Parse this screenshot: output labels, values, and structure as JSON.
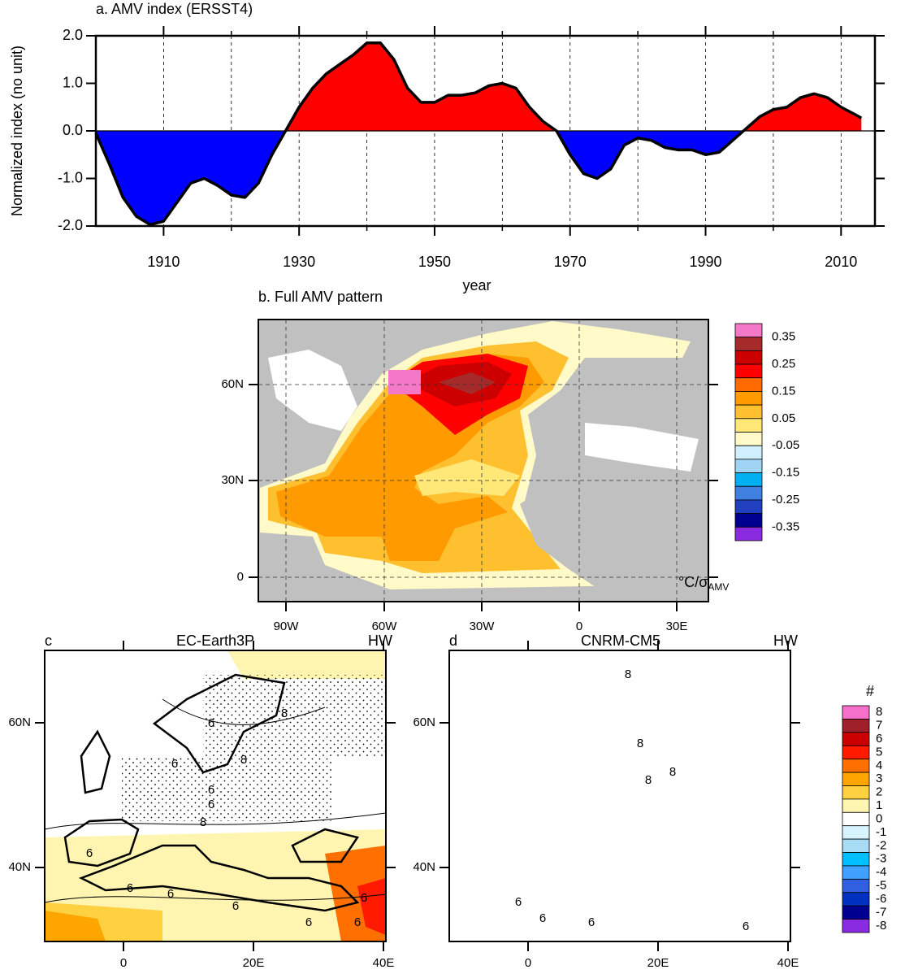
{
  "chart_data": {
    "type": "area",
    "title": "a. AMV index (ERSST4)",
    "xlabel": "year",
    "ylabel": "Normalized index (no unit)",
    "x": [
      1900,
      1902,
      1904,
      1906,
      1908,
      1910,
      1912,
      1914,
      1916,
      1918,
      1920,
      1922,
      1924,
      1926,
      1928,
      1930,
      1932,
      1934,
      1936,
      1938,
      1940,
      1942,
      1944,
      1946,
      1948,
      1950,
      1952,
      1954,
      1956,
      1958,
      1960,
      1962,
      1964,
      1966,
      1968,
      1970,
      1972,
      1974,
      1976,
      1978,
      1980,
      1982,
      1984,
      1986,
      1988,
      1990,
      1992,
      1994,
      1996,
      1998,
      2000,
      2002,
      2004,
      2006,
      2008,
      2010,
      2012,
      2013
    ],
    "values": [
      -0.05,
      -0.7,
      -1.4,
      -1.8,
      -1.97,
      -1.9,
      -1.5,
      -1.1,
      -1.0,
      -1.15,
      -1.35,
      -1.4,
      -1.1,
      -0.5,
      0.0,
      0.5,
      0.9,
      1.2,
      1.4,
      1.6,
      1.85,
      1.85,
      1.5,
      0.9,
      0.6,
      0.6,
      0.75,
      0.75,
      0.8,
      0.95,
      1.0,
      0.9,
      0.5,
      0.2,
      0.0,
      -0.5,
      -0.9,
      -1.0,
      -0.8,
      -0.3,
      -0.15,
      -0.2,
      -0.35,
      -0.4,
      -0.4,
      -0.5,
      -0.45,
      -0.2,
      0.05,
      0.3,
      0.45,
      0.5,
      0.7,
      0.78,
      0.7,
      0.5,
      0.35,
      0.27
    ],
    "xlim": [
      1900,
      2015
    ],
    "ylim": [
      -2,
      2
    ],
    "xticks": [
      1910,
      1930,
      1950,
      1970,
      1990,
      2010
    ],
    "xminorticks": [
      1920,
      1940,
      1960,
      1980,
      2000
    ],
    "yticks": [
      {
        "value": 2,
        "label": "2.0"
      },
      {
        "value": 1,
        "label": "1.0"
      },
      {
        "value": 0,
        "label": "0.0"
      },
      {
        "value": -1,
        "label": "-1.0"
      },
      {
        "value": -2,
        "label": "-2.0"
      }
    ],
    "grid": true,
    "positive_color": "#ff0000",
    "negative_color": "#0000ff",
    "line_color": "#000000"
  },
  "map_b": {
    "title": "b. Full AMV pattern",
    "lon_labels": [
      "90W",
      "60W",
      "30W",
      "0",
      "30E"
    ],
    "lat_labels": [
      "60N",
      "30N",
      "0"
    ],
    "colorbar": {
      "labels": [
        "0.35",
        "0.25",
        "0.15",
        "0.05",
        "-0.05",
        "-0.15",
        "-0.25",
        "-0.35"
      ],
      "colors": [
        "#f478c8",
        "#a52a2a",
        "#cd0000",
        "#ff0000",
        "#ff6a00",
        "#ff9a00",
        "#ffc030",
        "#ffe878",
        "#fffac8",
        "#d0f0ff",
        "#a0d4f5",
        "#00b0f0",
        "#4080e0",
        "#2040c0",
        "#000090",
        "#8a2be2"
      ],
      "unit": "°C/σ",
      "unit_sub": "AMV"
    }
  },
  "map_c": {
    "letter": "c",
    "title": "EC-Earth3P",
    "tag": "HW",
    "lon_labels": [
      "0",
      "20E",
      "40E"
    ],
    "lat_labels": [
      "60N",
      "40N"
    ],
    "contour_labels": [
      "6",
      "8",
      "8",
      "6",
      "6",
      "6",
      "8",
      "6",
      "6",
      "6",
      "6",
      "6",
      "6",
      "6"
    ]
  },
  "map_d": {
    "letter": "d",
    "title": "CNRM-CM5",
    "tag": "HW",
    "lon_labels": [
      "0",
      "20E",
      "40E"
    ],
    "lat_labels": [
      "60N",
      "40N"
    ],
    "contour_labels": [
      "8",
      "8",
      "8",
      "8",
      "6",
      "6",
      "6",
      "6"
    ]
  },
  "colorbar_cd": {
    "title": "#",
    "labels": [
      "8",
      "7",
      "6",
      "5",
      "4",
      "3",
      "2",
      "1",
      "0",
      "-1",
      "-2",
      "-3",
      "-4",
      "-5",
      "-6",
      "-7",
      "-8"
    ],
    "colors": [
      "#f570c8",
      "#a0202a",
      "#cc0000",
      "#ff1a00",
      "#ff7000",
      "#ffa500",
      "#ffd040",
      "#fff5b0",
      "#ffffff",
      "#d8f4ff",
      "#a8dcf5",
      "#00bfff",
      "#40a0ff",
      "#3060e0",
      "#0030c0",
      "#000090",
      "#8a2be2"
    ]
  }
}
